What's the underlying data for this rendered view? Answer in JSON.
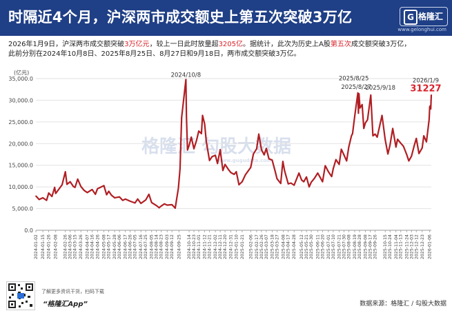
{
  "header": {
    "title": "时隔近4个月，沪深两市成交额史上第五次突破3万亿",
    "logo_letter": "G",
    "logo_text": "格隆汇",
    "logo_url": "www.gelonghui.com"
  },
  "subtitle": {
    "p1": "2026年1月9日，沪深两市成交额突破",
    "hl1": "3万亿元",
    "p2": "，较上一日此时放量超",
    "hl2": "3205亿",
    "p3": "。据统计，此次为历史上A股",
    "hl3": "第五次",
    "p4": "成交额突破3万亿，",
    "line2": "此前分别在2024年10月8日、2025年8月25日、8月27日和9月18日，两市成交额突破3万亿。"
  },
  "watermark": {
    "text": "格隆汇   勾股大数据",
    "url": "www.gugudata.com"
  },
  "footer": {
    "line1": "了解更多资讯干货，扫码下载",
    "app": "“格隆汇App”",
    "source": "数据来源：格隆汇 / 勾股大数据"
  },
  "chart_data": {
    "type": "line",
    "unit_label": "(亿元)",
    "color": "#b01e23",
    "ylim": [
      0,
      35000
    ],
    "yticks": [
      0,
      5000,
      10000,
      15000,
      20000,
      25000,
      30000,
      35000
    ],
    "ytick_labels": [
      "0.0",
      "5,000.0",
      "10,000.0",
      "15,000.0",
      "20,000.0",
      "25,000.0",
      "30,000.0",
      "35,000.0"
    ],
    "grid": true,
    "xtick_labels": [
      "2024-01-02",
      "2024-01-15",
      "2024-01-26",
      "2024-02-08",
      "2024-02-26",
      "2024-03-06",
      "2024-03-15",
      "2024-03-26",
      "2024-04-07",
      "2024-04-16",
      "2024-04-26",
      "2024-05-08",
      "2024-05-17",
      "2024-05-28",
      "2024-06-06",
      "2024-06-17",
      "2024-06-26",
      "2024-07-05",
      "2024-07-16",
      "2024-07-25",
      "2024-08-05",
      "2024-08-14",
      "2024-08-23",
      "2024-09-03",
      "2024-09-12",
      "2024-09-25",
      "2024-10-14",
      "2024-10-23",
      "2024-11-01",
      "2024-11-12",
      "2024-11-21",
      "2024-12-02",
      "2024-12-11",
      "2024-12-20",
      "2024-12-31",
      "2025-01-10",
      "2025-01-21",
      "2025-02-06",
      "2025-02-17",
      "2025-02-26",
      "2025-03-07",
      "2025-03-18",
      "2025-03-27",
      "2025-04-08",
      "2025-04-17",
      "2025-04-28",
      "2025-05-12",
      "2025-05-21",
      "2025-05-30",
      "2025-06-11",
      "2025-06-20",
      "2025-07-01",
      "2025-07-10",
      "2025-07-21",
      "2025-07-30",
      "2025-08-08",
      "2025-08-19",
      "2025-08-28",
      "2025-09-08",
      "2025-09-17",
      "2025-09-26",
      "2025-10-15",
      "2025-10-24",
      "2025-11-04",
      "2025-11-13",
      "2025-11-24",
      "2025-12-03",
      "2025-12-12",
      "2025-12-23",
      "2026-01-06"
    ],
    "annotations": [
      {
        "label": "2024/10/8",
        "x": "2024-10-08",
        "y": 34800,
        "color": "#333333"
      },
      {
        "label": "2025/8/25",
        "x": "2025-08-25",
        "y": 31700,
        "color": "#333333"
      },
      {
        "label": "2025/8/27",
        "x": "2025-08-27",
        "y": 31500,
        "color": "#333333"
      },
      {
        "label": "2025/9/18",
        "x": "2025-09-18",
        "y": 31200,
        "color": "#333333"
      },
      {
        "label": "2026/1/9",
        "x": "2026-01-09",
        "y": 31227,
        "color": "#333333"
      },
      {
        "label": "31227",
        "x": "2026-01-09",
        "y": 31227,
        "color": "#d9222a"
      }
    ],
    "series": [
      {
        "values": [
          {
            "x": "2024-01-02",
            "y": 7900
          },
          {
            "x": "2024-01-08",
            "y": 7100
          },
          {
            "x": "2024-01-15",
            "y": 7500
          },
          {
            "x": "2024-01-22",
            "y": 6900
          },
          {
            "x": "2024-01-26",
            "y": 8600
          },
          {
            "x": "2024-02-01",
            "y": 7800
          },
          {
            "x": "2024-02-06",
            "y": 9900
          },
          {
            "x": "2024-02-08",
            "y": 8500
          },
          {
            "x": "2024-02-20",
            "y": 10500
          },
          {
            "x": "2024-02-26",
            "y": 13500
          },
          {
            "x": "2024-02-29",
            "y": 10600
          },
          {
            "x": "2024-03-06",
            "y": 11200
          },
          {
            "x": "2024-03-12",
            "y": 10100
          },
          {
            "x": "2024-03-15",
            "y": 9900
          },
          {
            "x": "2024-03-20",
            "y": 11800
          },
          {
            "x": "2024-03-26",
            "y": 10100
          },
          {
            "x": "2024-04-01",
            "y": 9200
          },
          {
            "x": "2024-04-07",
            "y": 8700
          },
          {
            "x": "2024-04-16",
            "y": 9400
          },
          {
            "x": "2024-04-22",
            "y": 8300
          },
          {
            "x": "2024-04-26",
            "y": 9600
          },
          {
            "x": "2024-05-08",
            "y": 10300
          },
          {
            "x": "2024-05-13",
            "y": 8200
          },
          {
            "x": "2024-05-17",
            "y": 9000
          },
          {
            "x": "2024-05-22",
            "y": 8100
          },
          {
            "x": "2024-05-28",
            "y": 7500
          },
          {
            "x": "2024-06-06",
            "y": 7700
          },
          {
            "x": "2024-06-12",
            "y": 6900
          },
          {
            "x": "2024-06-17",
            "y": 7200
          },
          {
            "x": "2024-06-26",
            "y": 6700
          },
          {
            "x": "2024-07-05",
            "y": 6300
          },
          {
            "x": "2024-07-10",
            "y": 7200
          },
          {
            "x": "2024-07-16",
            "y": 6200
          },
          {
            "x": "2024-07-25",
            "y": 7000
          },
          {
            "x": "2024-07-31",
            "y": 8300
          },
          {
            "x": "2024-08-05",
            "y": 6400
          },
          {
            "x": "2024-08-14",
            "y": 5700
          },
          {
            "x": "2024-08-19",
            "y": 5200
          },
          {
            "x": "2024-08-23",
            "y": 5600
          },
          {
            "x": "2024-08-29",
            "y": 6100
          },
          {
            "x": "2024-09-03",
            "y": 5800
          },
          {
            "x": "2024-09-12",
            "y": 5900
          },
          {
            "x": "2024-09-18",
            "y": 5100
          },
          {
            "x": "2024-09-24",
            "y": 9700
          },
          {
            "x": "2024-09-27",
            "y": 14200
          },
          {
            "x": "2024-09-30",
            "y": 26000
          },
          {
            "x": "2024-10-08",
            "y": 34800
          },
          {
            "x": "2024-10-09",
            "y": 26200
          },
          {
            "x": "2024-10-11",
            "y": 18500
          },
          {
            "x": "2024-10-14",
            "y": 19600
          },
          {
            "x": "2024-10-18",
            "y": 21500
          },
          {
            "x": "2024-10-23",
            "y": 18800
          },
          {
            "x": "2024-10-28",
            "y": 20800
          },
          {
            "x": "2024-11-01",
            "y": 22900
          },
          {
            "x": "2024-11-06",
            "y": 22300
          },
          {
            "x": "2024-11-08",
            "y": 26500
          },
          {
            "x": "2024-11-12",
            "y": 24500
          },
          {
            "x": "2024-11-15",
            "y": 20500
          },
          {
            "x": "2024-11-21",
            "y": 16100
          },
          {
            "x": "2024-11-26",
            "y": 17000
          },
          {
            "x": "2024-12-02",
            "y": 17300
          },
          {
            "x": "2024-12-06",
            "y": 15400
          },
          {
            "x": "2024-12-11",
            "y": 18600
          },
          {
            "x": "2024-12-16",
            "y": 13800
          },
          {
            "x": "2024-12-20",
            "y": 15200
          },
          {
            "x": "2024-12-26",
            "y": 14100
          },
          {
            "x": "2024-12-31",
            "y": 13300
          },
          {
            "x": "2025-01-06",
            "y": 12900
          },
          {
            "x": "2025-01-10",
            "y": 13500
          },
          {
            "x": "2025-01-15",
            "y": 10500
          },
          {
            "x": "2025-01-21",
            "y": 11200
          },
          {
            "x": "2025-01-27",
            "y": 12800
          },
          {
            "x": "2025-02-06",
            "y": 14500
          },
          {
            "x": "2025-02-11",
            "y": 17600
          },
          {
            "x": "2025-02-17",
            "y": 18800
          },
          {
            "x": "2025-02-21",
            "y": 22200
          },
          {
            "x": "2025-02-26",
            "y": 18600
          },
          {
            "x": "2025-03-03",
            "y": 17400
          },
          {
            "x": "2025-03-07",
            "y": 18900
          },
          {
            "x": "2025-03-12",
            "y": 16500
          },
          {
            "x": "2025-03-18",
            "y": 16200
          },
          {
            "x": "2025-03-24",
            "y": 13400
          },
          {
            "x": "2025-03-27",
            "y": 11900
          },
          {
            "x": "2025-04-03",
            "y": 10800
          },
          {
            "x": "2025-04-07",
            "y": 15900
          },
          {
            "x": "2025-04-10",
            "y": 13800
          },
          {
            "x": "2025-04-17",
            "y": 10700
          },
          {
            "x": "2025-04-22",
            "y": 10900
          },
          {
            "x": "2025-04-28",
            "y": 10400
          },
          {
            "x": "2025-05-07",
            "y": 13200
          },
          {
            "x": "2025-05-12",
            "y": 11600
          },
          {
            "x": "2025-05-16",
            "y": 11200
          },
          {
            "x": "2025-05-21",
            "y": 12300
          },
          {
            "x": "2025-05-26",
            "y": 10000
          },
          {
            "x": "2025-05-30",
            "y": 11100
          },
          {
            "x": "2025-06-05",
            "y": 12000
          },
          {
            "x": "2025-06-11",
            "y": 13200
          },
          {
            "x": "2025-06-16",
            "y": 12100
          },
          {
            "x": "2025-06-20",
            "y": 11200
          },
          {
            "x": "2025-06-25",
            "y": 14900
          },
          {
            "x": "2025-07-01",
            "y": 13500
          },
          {
            "x": "2025-07-07",
            "y": 12400
          },
          {
            "x": "2025-07-10",
            "y": 14200
          },
          {
            "x": "2025-07-15",
            "y": 16300
          },
          {
            "x": "2025-07-21",
            "y": 15200
          },
          {
            "x": "2025-07-25",
            "y": 18700
          },
          {
            "x": "2025-07-30",
            "y": 17400
          },
          {
            "x": "2025-08-04",
            "y": 16000
          },
          {
            "x": "2025-08-08",
            "y": 19200
          },
          {
            "x": "2025-08-13",
            "y": 21800
          },
          {
            "x": "2025-08-15",
            "y": 22300
          },
          {
            "x": "2025-08-19",
            "y": 26300
          },
          {
            "x": "2025-08-25",
            "y": 31700
          },
          {
            "x": "2025-08-26",
            "y": 27000
          },
          {
            "x": "2025-08-27",
            "y": 31500
          },
          {
            "x": "2025-08-29",
            "y": 28200
          },
          {
            "x": "2025-09-02",
            "y": 29000
          },
          {
            "x": "2025-09-05",
            "y": 23500
          },
          {
            "x": "2025-09-08",
            "y": 24800
          },
          {
            "x": "2025-09-12",
            "y": 25500
          },
          {
            "x": "2025-09-18",
            "y": 31200
          },
          {
            "x": "2025-09-22",
            "y": 21800
          },
          {
            "x": "2025-09-26",
            "y": 22200
          },
          {
            "x": "2025-09-30",
            "y": 21500
          },
          {
            "x": "2025-10-09",
            "y": 26500
          },
          {
            "x": "2025-10-15",
            "y": 20900
          },
          {
            "x": "2025-10-20",
            "y": 17600
          },
          {
            "x": "2025-10-24",
            "y": 19700
          },
          {
            "x": "2025-10-29",
            "y": 23500
          },
          {
            "x": "2025-11-04",
            "y": 19200
          },
          {
            "x": "2025-11-07",
            "y": 21000
          },
          {
            "x": "2025-11-13",
            "y": 20100
          },
          {
            "x": "2025-11-18",
            "y": 19400
          },
          {
            "x": "2025-11-24",
            "y": 17500
          },
          {
            "x": "2025-11-28",
            "y": 16000
          },
          {
            "x": "2025-12-03",
            "y": 17100
          },
          {
            "x": "2025-12-08",
            "y": 19500
          },
          {
            "x": "2025-12-12",
            "y": 21200
          },
          {
            "x": "2025-12-17",
            "y": 17700
          },
          {
            "x": "2025-12-23",
            "y": 19000
          },
          {
            "x": "2025-12-26",
            "y": 21800
          },
          {
            "x": "2025-12-31",
            "y": 20400
          },
          {
            "x": "2026-01-05",
            "y": 25600
          },
          {
            "x": "2026-01-06",
            "y": 28500
          },
          {
            "x": "2026-01-07",
            "y": 28700
          },
          {
            "x": "2026-01-08",
            "y": 28000
          },
          {
            "x": "2026-01-09",
            "y": 31227
          }
        ]
      }
    ]
  }
}
